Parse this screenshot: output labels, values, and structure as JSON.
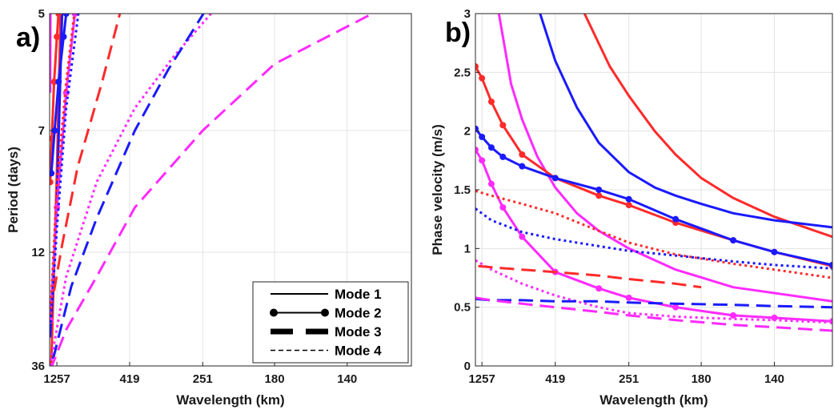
{
  "chart_data": [
    {
      "type": "line",
      "panel_label": "a)",
      "xlabel": "Wavelength (km)",
      "ylabel": "Period (days)",
      "x_scale": "reciprocal",
      "y_scale": "reciprocal",
      "xlim": [
        1570,
        117
      ],
      "ylim": [
        36,
        5
      ],
      "x_ticks": [
        1257,
        419,
        251,
        180,
        140
      ],
      "y_ticks": [
        5,
        7,
        12,
        36
      ],
      "grid": true,
      "legend": {
        "placement": "bottom-right",
        "entries": [
          {
            "label": "Mode 1",
            "style": "solid"
          },
          {
            "label": "Mode 2",
            "style": "solid-dots"
          },
          {
            "label": "Mode 3",
            "style": "long-dash"
          },
          {
            "label": "Mode 4",
            "style": "short-dash"
          }
        ]
      },
      "series": [
        {
          "color": "#ff2a2a",
          "style": "solid",
          "x": [
            1495,
            1257,
            1140
          ],
          "y": [
            39,
            8.1,
            5
          ]
        },
        {
          "color": "#1a1aff",
          "style": "solid",
          "x": [
            1540,
            1257,
            1100
          ],
          "y": [
            24,
            9.2,
            5
          ]
        },
        {
          "color": "#ff2aff",
          "style": "solid",
          "x": [
            1540,
            1530
          ],
          "y": [
            6.2,
            5
          ]
        },
        {
          "color": "#ff2a2a",
          "style": "solid-dots",
          "x": [
            1540,
            1460,
            1360,
            1257,
            1200
          ],
          "y": [
            8.5,
            7.2,
            6.0,
            5.3,
            5
          ]
        },
        {
          "color": "#1a1aff",
          "style": "solid-dots",
          "x": [
            1480,
            1340,
            1200,
            1060,
            1000
          ],
          "y": [
            8.2,
            7.0,
            6.0,
            5.3,
            5
          ]
        },
        {
          "color": "#ff2aff",
          "style": "solid-dots",
          "x": [
            1540,
            1257,
            1000,
            840
          ],
          "y": [
            20,
            9.5,
            6.2,
            5
          ]
        },
        {
          "color": "#ff2a2a",
          "style": "short-dash",
          "x": [
            1530,
            1257,
            1000,
            850
          ],
          "y": [
            19,
            8.6,
            6.0,
            5
          ]
        },
        {
          "color": "#1a1aff",
          "style": "short-dash",
          "x": [
            1540,
            1257,
            1000,
            790
          ],
          "y": [
            23,
            10.5,
            6.5,
            5
          ]
        },
        {
          "color": "#ff2aff",
          "style": "short-dash",
          "x": [
            1540,
            1000,
            600,
            400,
            300,
            240
          ],
          "y": [
            36,
            14,
            8.5,
            6.5,
            5.6,
            5
          ]
        },
        {
          "color": "#ff2a2a",
          "style": "long-dash",
          "x": [
            1360,
            1100,
            800,
            560,
            460
          ],
          "y": [
            15.5,
            11.5,
            8,
            6,
            5
          ]
        },
        {
          "color": "#1a1aff",
          "style": "long-dash",
          "x": [
            1400,
            900,
            600,
            400,
            310,
            250
          ],
          "y": [
            32,
            15,
            10,
            7,
            5.8,
            5
          ]
        },
        {
          "color": "#ff2aff",
          "style": "long-dash",
          "x": [
            1540,
            1000,
            600,
            400,
            251,
            180,
            130
          ],
          "y": [
            39,
            22,
            14,
            9.5,
            7,
            5.7,
            5
          ]
        }
      ]
    },
    {
      "type": "line",
      "panel_label": "b)",
      "xlabel": "Wavelength (km)",
      "ylabel": "Phase velocity (m/s)",
      "x_scale": "reciprocal",
      "xlim": [
        1530,
        119
      ],
      "ylim": [
        0,
        3
      ],
      "x_ticks": [
        1257,
        419,
        251,
        180,
        140
      ],
      "y_ticks": [
        0,
        0.5,
        1,
        1.5,
        2,
        2.5,
        3
      ],
      "grid": true,
      "series": [
        {
          "color": "#ff2a2a",
          "style": "solid",
          "x": [
            331,
            280,
            251,
            220,
            200,
            180,
            160,
            140,
            119
          ],
          "y": [
            3.0,
            2.55,
            2.3,
            2.0,
            1.8,
            1.6,
            1.43,
            1.27,
            1.1
          ]
        },
        {
          "color": "#1a1aff",
          "style": "solid",
          "x": [
            486,
            419,
            350,
            300,
            251,
            220,
            200,
            180,
            160,
            140,
            119
          ],
          "y": [
            3.0,
            2.6,
            2.2,
            1.9,
            1.65,
            1.52,
            1.45,
            1.38,
            1.3,
            1.24,
            1.18
          ]
        },
        {
          "color": "#ff2aff",
          "style": "solid",
          "x": [
            860,
            700,
            600,
            500,
            419,
            350,
            300,
            251,
            200,
            160,
            119
          ],
          "y": [
            3.0,
            2.4,
            2.1,
            1.78,
            1.52,
            1.3,
            1.15,
            1.0,
            0.82,
            0.67,
            0.55
          ]
        },
        {
          "color": "#ff2a2a",
          "style": "solid-dots",
          "x": [
            1530,
            1257,
            1000,
            800,
            600,
            419,
            300,
            251,
            200,
            160,
            140,
            119
          ],
          "y": [
            2.55,
            2.45,
            2.25,
            2.05,
            1.8,
            1.6,
            1.45,
            1.37,
            1.22,
            1.07,
            0.97,
            0.85
          ]
        },
        {
          "color": "#1a1aff",
          "style": "solid-dots",
          "x": [
            1530,
            1257,
            1000,
            800,
            600,
            419,
            300,
            251,
            200,
            160,
            140,
            119
          ],
          "y": [
            2.02,
            1.95,
            1.86,
            1.78,
            1.7,
            1.6,
            1.5,
            1.42,
            1.25,
            1.07,
            0.97,
            0.86
          ]
        },
        {
          "color": "#ff2aff",
          "style": "solid-dots",
          "x": [
            1530,
            1257,
            1000,
            800,
            600,
            419,
            300,
            251,
            200,
            160,
            140,
            119
          ],
          "y": [
            1.84,
            1.75,
            1.55,
            1.35,
            1.1,
            0.8,
            0.66,
            0.58,
            0.5,
            0.43,
            0.41,
            0.38
          ]
        },
        {
          "color": "#ff2a2a",
          "style": "short-dash",
          "x": [
            1530,
            1000,
            600,
            419,
            300,
            251,
            200,
            160,
            140,
            119
          ],
          "y": [
            1.49,
            1.45,
            1.38,
            1.3,
            1.15,
            1.05,
            0.95,
            0.87,
            0.82,
            0.75
          ]
        },
        {
          "color": "#1a1aff",
          "style": "short-dash",
          "x": [
            1530,
            1000,
            600,
            419,
            300,
            251,
            200,
            160,
            140,
            119
          ],
          "y": [
            1.34,
            1.24,
            1.14,
            1.08,
            1.02,
            0.98,
            0.94,
            0.89,
            0.86,
            0.83
          ]
        },
        {
          "color": "#ff2aff",
          "style": "short-dash",
          "x": [
            1530,
            1000,
            600,
            419,
            300,
            251,
            200,
            160,
            140,
            119
          ],
          "y": [
            0.9,
            0.82,
            0.7,
            0.6,
            0.5,
            0.45,
            0.42,
            0.4,
            0.39,
            0.37
          ]
        },
        {
          "color": "#ff2a2a",
          "style": "long-dash",
          "x": [
            1400,
            1000,
            600,
            419,
            300,
            251,
            200,
            180
          ],
          "y": [
            0.85,
            0.84,
            0.82,
            0.8,
            0.77,
            0.74,
            0.7,
            0.67
          ]
        },
        {
          "color": "#1a1aff",
          "style": "long-dash",
          "x": [
            1530,
            1000,
            600,
            419,
            300,
            251,
            200,
            160,
            140,
            119
          ],
          "y": [
            0.57,
            0.56,
            0.56,
            0.55,
            0.55,
            0.54,
            0.53,
            0.52,
            0.51,
            0.5
          ]
        },
        {
          "color": "#ff2aff",
          "style": "long-dash",
          "x": [
            1530,
            1000,
            600,
            419,
            300,
            251,
            200,
            160,
            140,
            119
          ],
          "y": [
            0.58,
            0.56,
            0.53,
            0.5,
            0.46,
            0.43,
            0.39,
            0.35,
            0.33,
            0.3
          ]
        }
      ]
    }
  ]
}
